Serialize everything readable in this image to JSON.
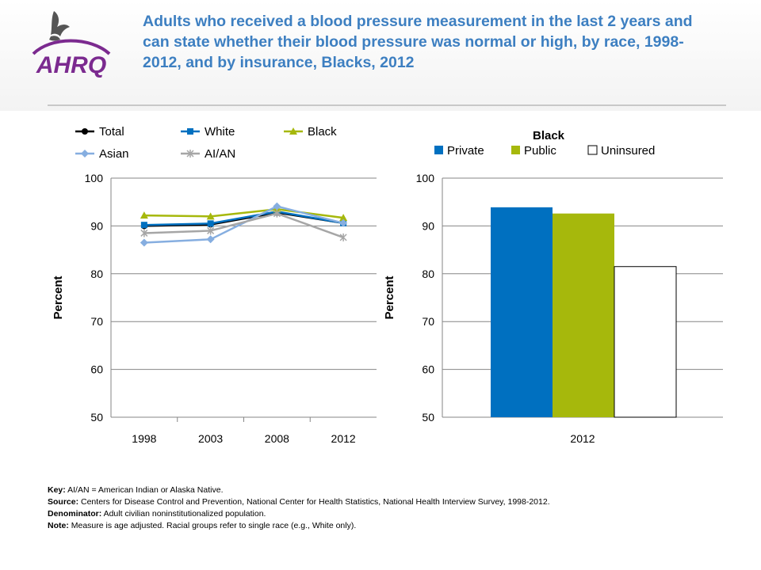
{
  "header": {
    "title": "Adults who received a blood pressure measurement in the last 2 years and can state whether their blood pressure was normal or high, by race, 1998-2012, and by insurance, Blacks, 2012",
    "logo_text": "AHRQ"
  },
  "colors": {
    "total": "#000000",
    "white": "#0070c0",
    "black": "#a6b80c",
    "asian": "#86aee0",
    "aian": "#a6a6a6",
    "private": "#0070c0",
    "public": "#a6b80c",
    "uninsured": "#ffffff",
    "title": "#3d7fc1"
  },
  "chart_data": [
    {
      "type": "line",
      "title": "",
      "xlabel": "",
      "ylabel": "Percent",
      "x": [
        "1998",
        "2003",
        "2008",
        "2012"
      ],
      "ylim": [
        50,
        100
      ],
      "yticks": [
        50,
        60,
        70,
        80,
        90,
        100
      ],
      "legend": "top",
      "series": [
        {
          "name": "Total",
          "values": [
            90.0,
            90.3,
            92.8,
            90.6
          ],
          "marker": "circle"
        },
        {
          "name": "White",
          "values": [
            90.2,
            90.5,
            93.0,
            90.6
          ],
          "marker": "square"
        },
        {
          "name": "Black",
          "values": [
            92.2,
            92.0,
            93.5,
            91.7
          ],
          "marker": "triangle"
        },
        {
          "name": "Asian",
          "values": [
            86.5,
            87.2,
            94.1,
            90.6
          ],
          "marker": "diamond"
        },
        {
          "name": "AI/AN",
          "values": [
            88.5,
            89.0,
            92.6,
            87.6
          ],
          "marker": "star"
        }
      ]
    },
    {
      "type": "bar",
      "title": "Black",
      "xlabel": "",
      "ylabel": "Percent",
      "categories": [
        "2012"
      ],
      "ylim": [
        50,
        100
      ],
      "yticks": [
        50,
        60,
        70,
        80,
        90,
        100
      ],
      "legend": "top",
      "series": [
        {
          "name": "Private",
          "values": [
            93.9
          ]
        },
        {
          "name": "Public",
          "values": [
            92.6
          ]
        },
        {
          "name": "Uninsured",
          "values": [
            81.5
          ]
        }
      ]
    }
  ],
  "footer": {
    "key_label": "Key:",
    "key_text": " AI/AN = American Indian or Alaska Native.",
    "source_label": "Source:",
    "source_text": " Centers for Disease Control and Prevention, National Center for Health Statistics, National Health Interview Survey, 1998-2012.",
    "denominator_label": "Denominator:",
    "denominator_text": " Adult civilian noninstitutionalized population.",
    "note_label": "Note:",
    "note_text": " Measure is age adjusted. Racial groups refer to single race (e.g., White only)."
  }
}
